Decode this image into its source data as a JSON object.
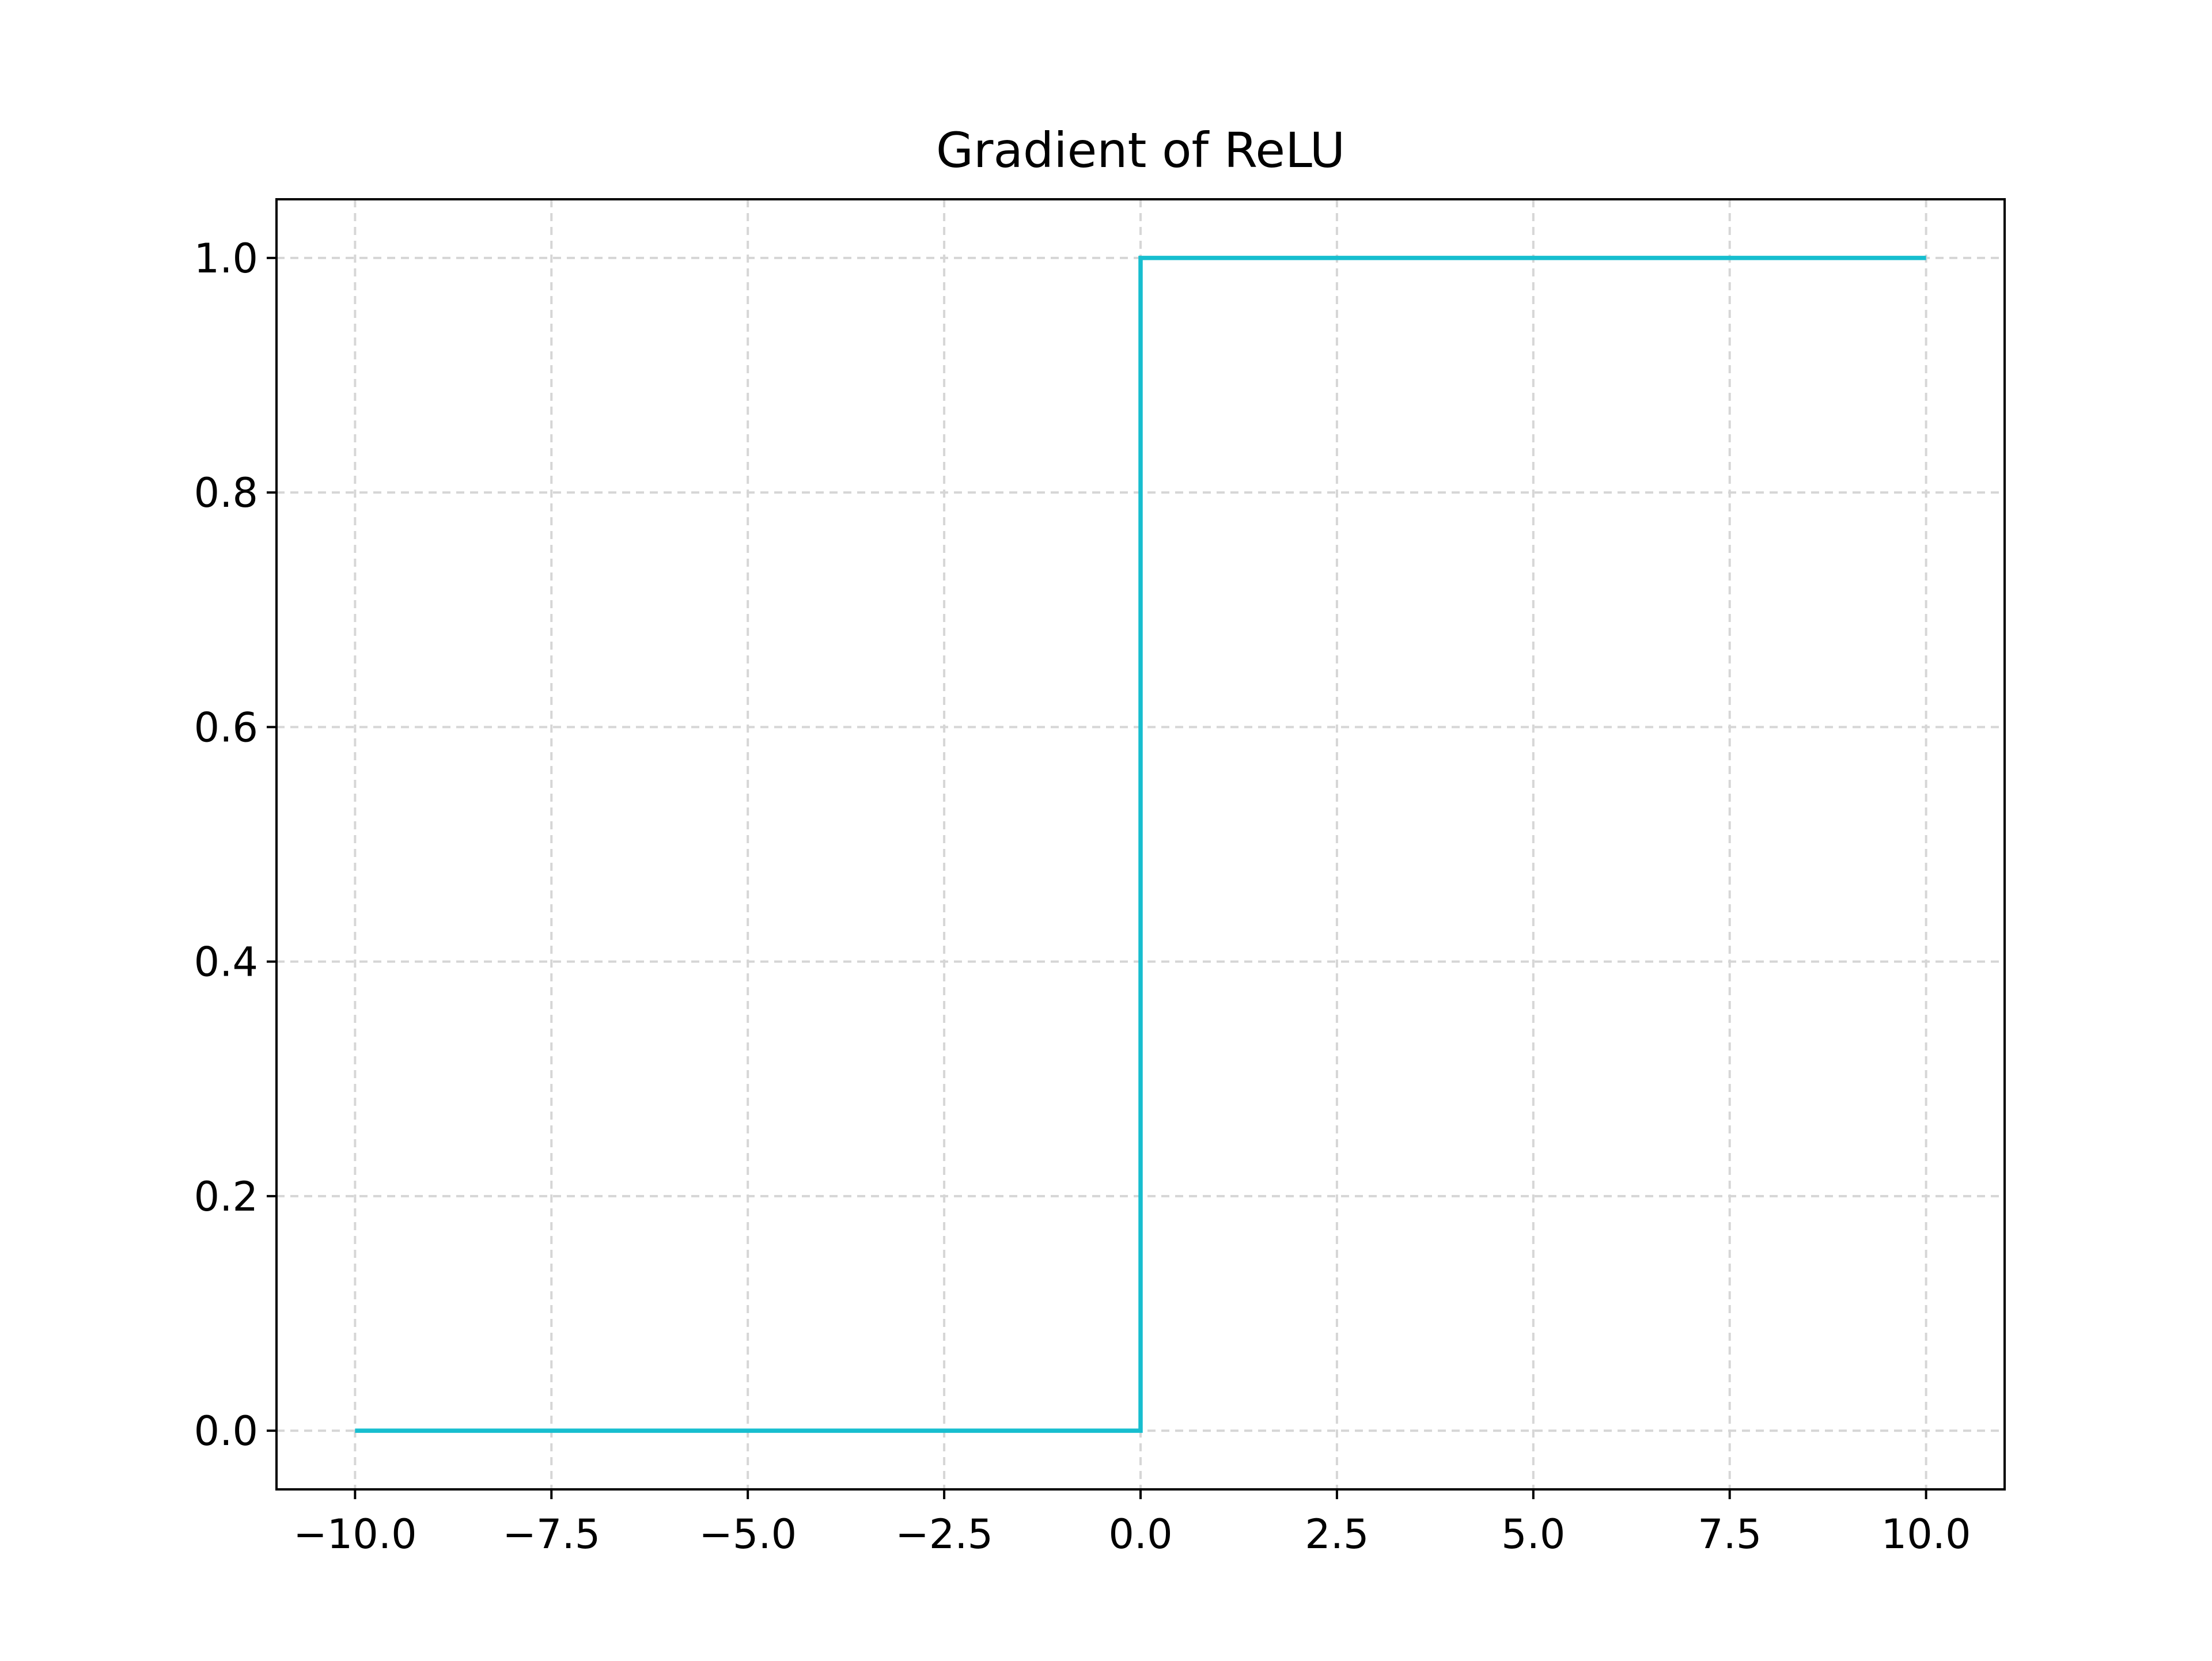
{
  "chart_data": {
    "type": "line",
    "title": "Gradient of ReLU",
    "xlabel": "",
    "ylabel": "",
    "xlim": [
      -11,
      11
    ],
    "ylim": [
      -0.05,
      1.05
    ],
    "grid": true,
    "x_ticks": [
      -10.0,
      -7.5,
      -5.0,
      -2.5,
      0.0,
      2.5,
      5.0,
      7.5,
      10.0
    ],
    "x_tick_labels": [
      "−10.0",
      "−7.5",
      "−5.0",
      "−2.5",
      "0.0",
      "2.5",
      "5.0",
      "7.5",
      "10.0"
    ],
    "y_ticks": [
      0.0,
      0.2,
      0.4,
      0.6,
      0.8,
      1.0
    ],
    "y_tick_labels": [
      "0.0",
      "0.2",
      "0.4",
      "0.6",
      "0.8",
      "1.0"
    ],
    "series": [
      {
        "color": "#17becf",
        "x": [
          -10.0,
          0.0,
          0.0,
          10.0
        ],
        "y": [
          0.0,
          0.0,
          1.0,
          1.0
        ]
      }
    ]
  }
}
